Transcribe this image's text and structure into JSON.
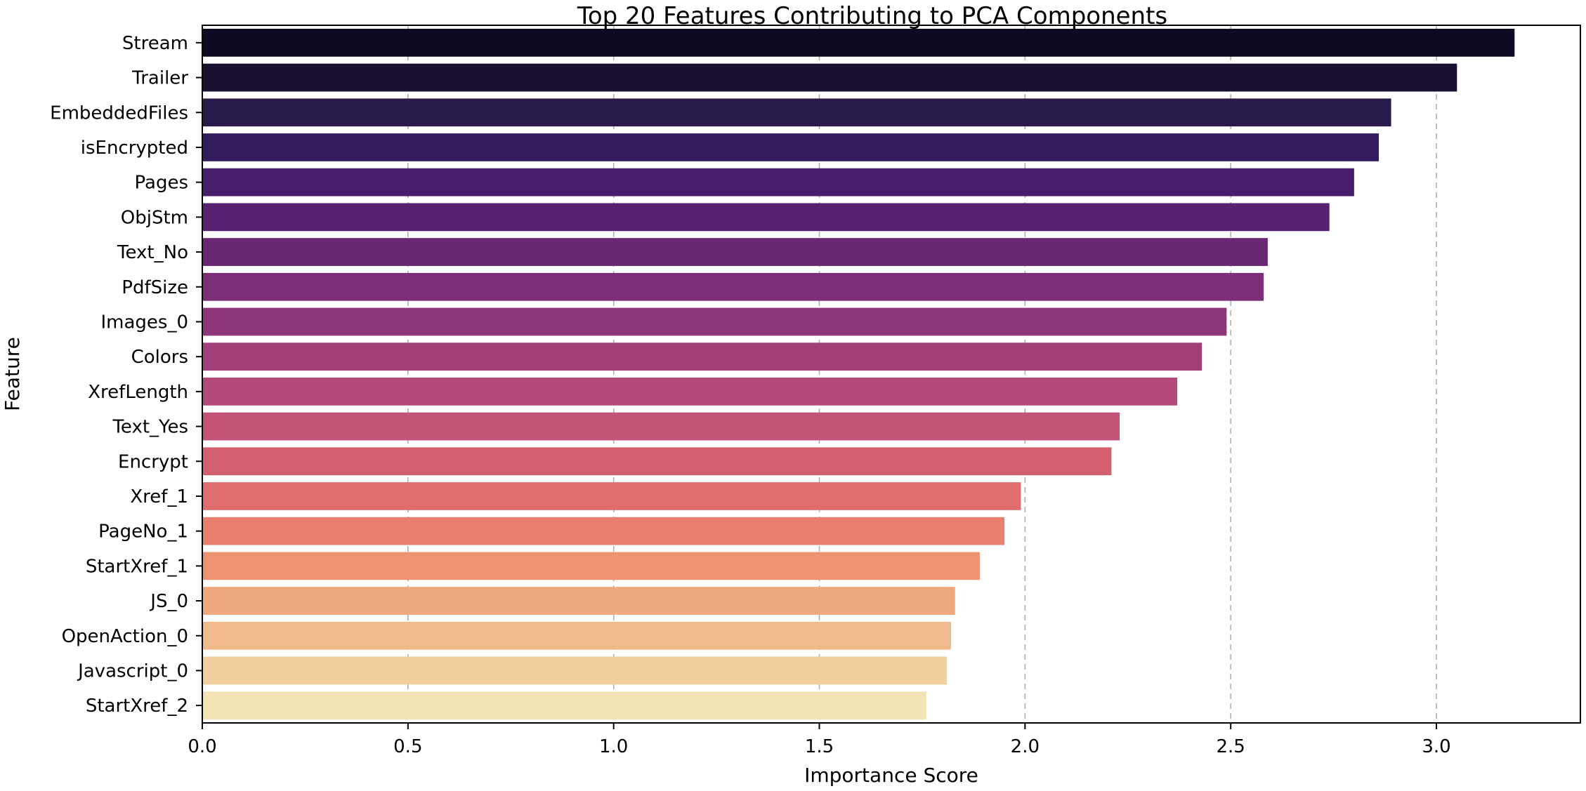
{
  "chart_data": {
    "type": "bar",
    "orientation": "horizontal",
    "title": "Top 20 Features Contributing to PCA Components",
    "xlabel": "Importance Score",
    "ylabel": "Feature",
    "xlim": [
      0,
      3.35
    ],
    "xticks": [
      0.0,
      0.5,
      1.0,
      1.5,
      2.0,
      2.5,
      3.0
    ],
    "xtick_labels": [
      "0.0",
      "0.5",
      "1.0",
      "1.5",
      "2.0",
      "2.5",
      "3.0"
    ],
    "grid": "vertical dashed",
    "categories": [
      "Stream",
      "Trailer",
      "EmbeddedFiles",
      "isEncrypted",
      "Pages",
      "ObjStm",
      "Text_No",
      "PdfSize",
      "Images_0",
      "Colors",
      "XrefLength",
      "Text_Yes",
      "Encrypt",
      "Xref_1",
      "PageNo_1",
      "StartXref_1",
      "JS_0",
      "OpenAction_0",
      "Javascript_0",
      "StartXref_2"
    ],
    "values": [
      3.19,
      3.05,
      2.89,
      2.86,
      2.8,
      2.74,
      2.59,
      2.58,
      2.49,
      2.43,
      2.37,
      2.23,
      2.21,
      1.99,
      1.95,
      1.89,
      1.83,
      1.82,
      1.81,
      1.76
    ],
    "colors": [
      "#0d0a22",
      "#19112f",
      "#281a4b",
      "#331c5e",
      "#461e6c",
      "#582270",
      "#6a2874",
      "#7c2f77",
      "#8f3579",
      "#a03f7a",
      "#b3487a",
      "#c45475",
      "#d4606f",
      "#df6e6c",
      "#e8806d",
      "#ed9372",
      "#efa87d",
      "#f0bb8c",
      "#f1cf9e",
      "#f3e3b4"
    ]
  }
}
